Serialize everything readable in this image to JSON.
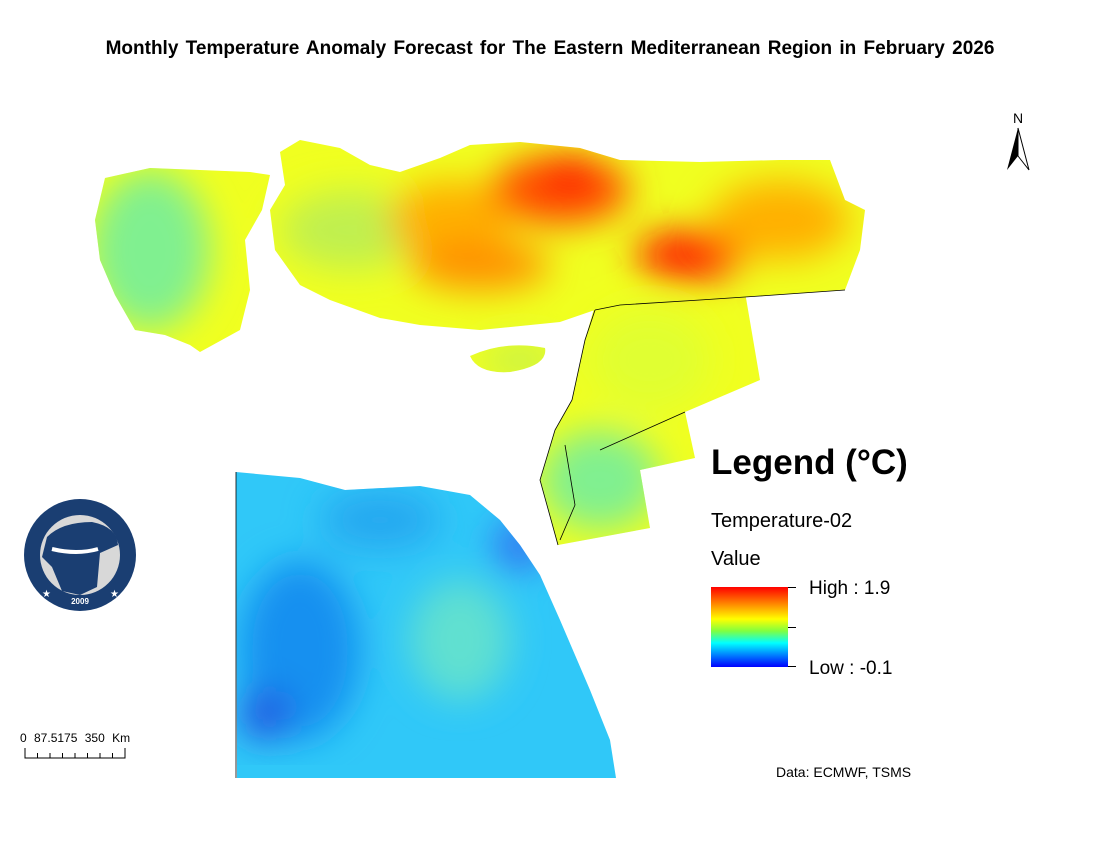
{
  "title": "Monthly Temperature  Anomaly Forecast  for The Eastern Mediterranean Region in February 2026",
  "north_arrow": {
    "label": "N",
    "icon": "north-arrow-icon"
  },
  "legend": {
    "title": "Legend (°C)",
    "layer": "Temperature-02",
    "field": "Value",
    "high_label": "High : 1.9",
    "low_label": "Low : -0.1",
    "high_value": 1.9,
    "low_value": -0.1,
    "colors": [
      "#ff0000",
      "#ff8000",
      "#ffff00",
      "#80ff40",
      "#00ffff",
      "#0080ff",
      "#0000ff"
    ]
  },
  "logo": {
    "text": "EASTERN MEDITERRANEAN CLIMATE CENTRE",
    "year": "2009"
  },
  "scale_bar": {
    "label": "0  87.5175       350  Km"
  },
  "credit": "Data: ECMWF, TSMS"
}
